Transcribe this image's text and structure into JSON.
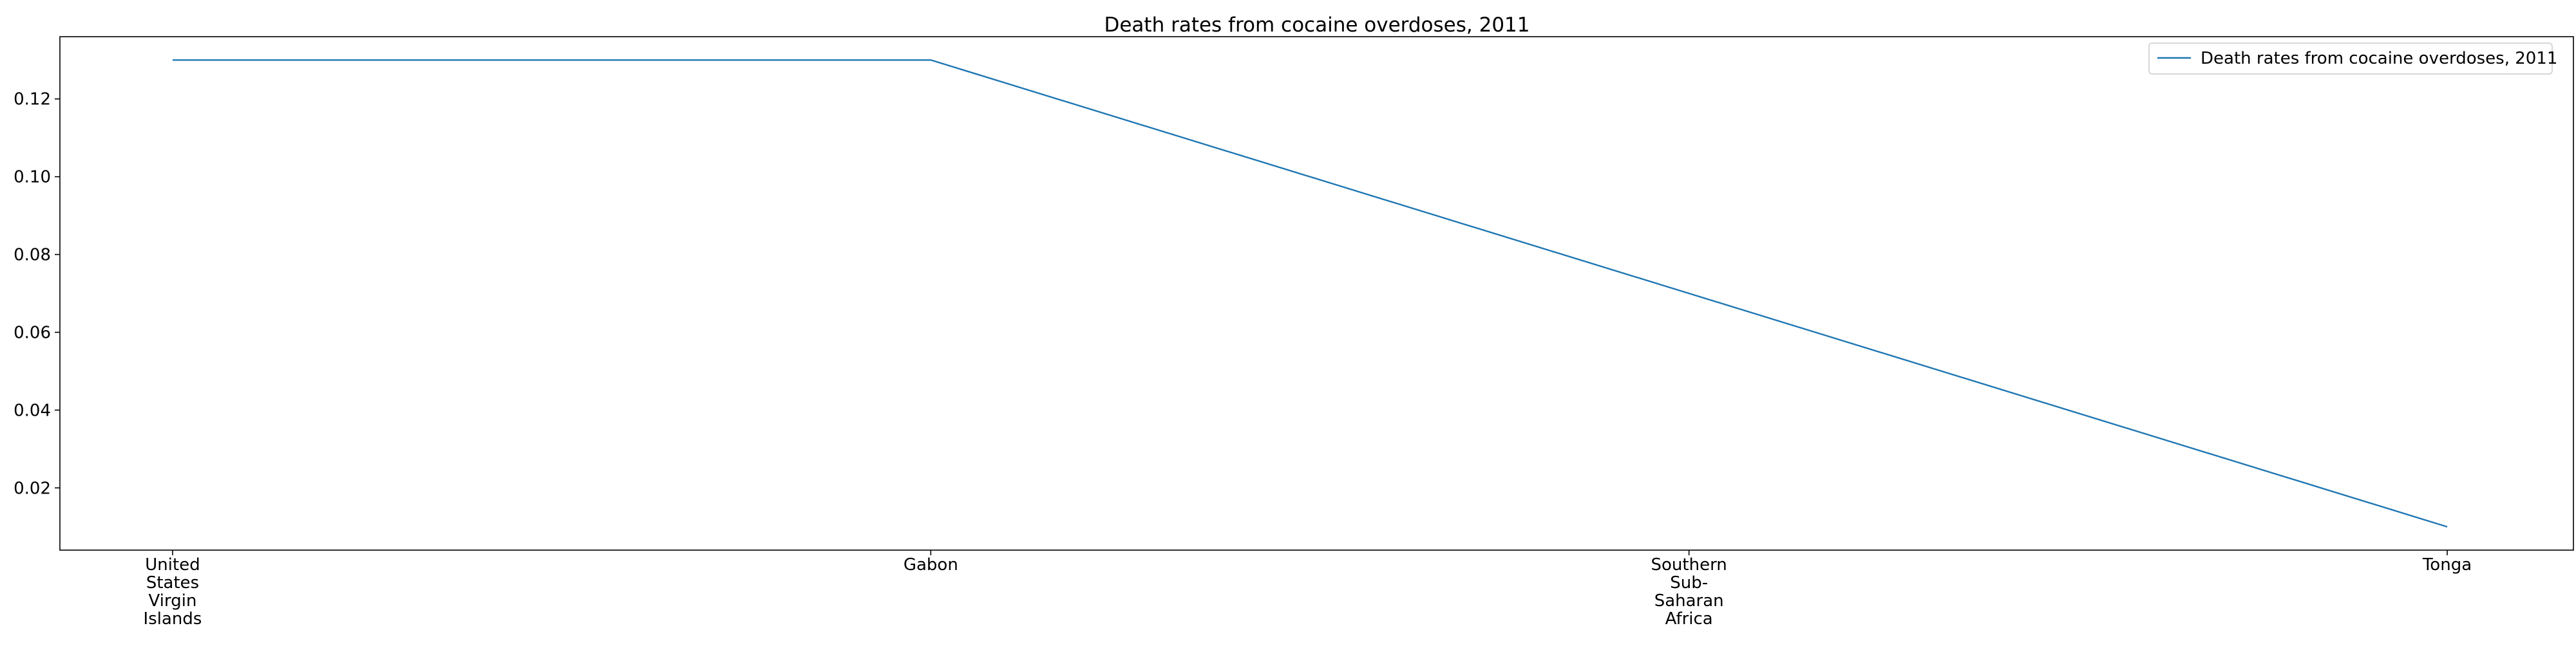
{
  "chart_data": {
    "type": "line",
    "title": "Death rates from cocaine overdoses, 2011",
    "xlabel": "",
    "ylabel": "",
    "categories": [
      "United States Virgin Islands",
      "Gabon",
      "Southern Sub-Saharan Africa",
      "Tonga"
    ],
    "category_display_lines": [
      [
        "United",
        "States",
        "Virgin",
        "Islands"
      ],
      [
        "Gabon"
      ],
      [
        "Southern",
        "Sub-",
        "Saharan",
        "Africa"
      ],
      [
        "Tonga"
      ]
    ],
    "series": [
      {
        "name": "Death rates from cocaine overdoses, 2011",
        "values": [
          0.13,
          0.13,
          0.07,
          0.01
        ],
        "color": "#1f77b4"
      }
    ],
    "ylim": [
      0.004,
      0.136
    ],
    "yticks": [
      0.02,
      0.04,
      0.06,
      0.08,
      0.1,
      0.12
    ],
    "ytick_labels": [
      "0.02",
      "0.04",
      "0.06",
      "0.08",
      "0.10",
      "0.12"
    ],
    "grid": false,
    "legend_position": "top-right"
  }
}
